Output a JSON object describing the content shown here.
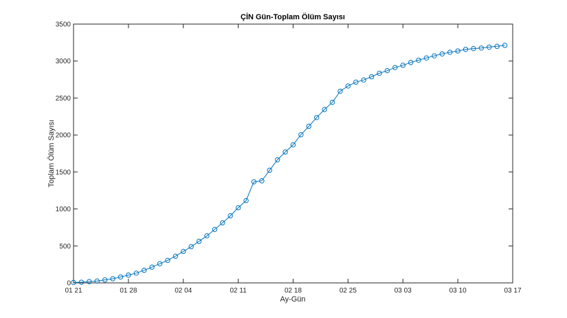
{
  "chart_data": {
    "type": "line",
    "title": "ÇİN Gün-Toplam Ölüm Sayısı",
    "xlabel": "Ay-Gün",
    "ylabel": "Toplam Ölüm Sayısı",
    "ylim": [
      0,
      3500
    ],
    "yticks": [
      0,
      500,
      1000,
      1500,
      2000,
      2500,
      3000,
      3500
    ],
    "xticks": [
      "01 21",
      "01 28",
      "02 04",
      "02 11",
      "02 18",
      "02 25",
      "03 03",
      "03 10",
      "03 17"
    ],
    "xlim_days": [
      0,
      56
    ],
    "grid": false,
    "legend": null,
    "marker": "circle",
    "line_color": "#0072BD",
    "series": [
      {
        "name": "Toplam Ölüm Sayısı",
        "x": [
          "01 21",
          "01 22",
          "01 23",
          "01 24",
          "01 25",
          "01 26",
          "01 27",
          "01 28",
          "01 29",
          "01 30",
          "01 31",
          "02 01",
          "02 02",
          "02 03",
          "02 04",
          "02 05",
          "02 06",
          "02 07",
          "02 08",
          "02 09",
          "02 10",
          "02 11",
          "02 12",
          "02 13",
          "02 14",
          "02 15",
          "02 16",
          "02 17",
          "02 18",
          "02 19",
          "02 20",
          "02 21",
          "02 22",
          "02 23",
          "02 24",
          "02 25",
          "02 26",
          "02 27",
          "02 28",
          "02 29",
          "03 01",
          "03 02",
          "03 03",
          "03 04",
          "03 05",
          "03 06",
          "03 07",
          "03 08",
          "03 09",
          "03 10",
          "03 11",
          "03 12",
          "03 13",
          "03 14",
          "03 15",
          "03 16"
        ],
        "values": [
          6,
          9,
          17,
          25,
          41,
          56,
          80,
          106,
          132,
          170,
          213,
          259,
          304,
          361,
          425,
          490,
          562,
          636,
          723,
          812,
          908,
          1016,
          1113,
          1367,
          1380,
          1523,
          1665,
          1770,
          1868,
          2004,
          2118,
          2236,
          2345,
          2442,
          2592,
          2663,
          2715,
          2744,
          2788,
          2835,
          2870,
          2912,
          2943,
          2981,
          3012,
          3042,
          3070,
          3097,
          3119,
          3136,
          3158,
          3169,
          3176,
          3189,
          3199,
          3213
        ]
      }
    ]
  }
}
